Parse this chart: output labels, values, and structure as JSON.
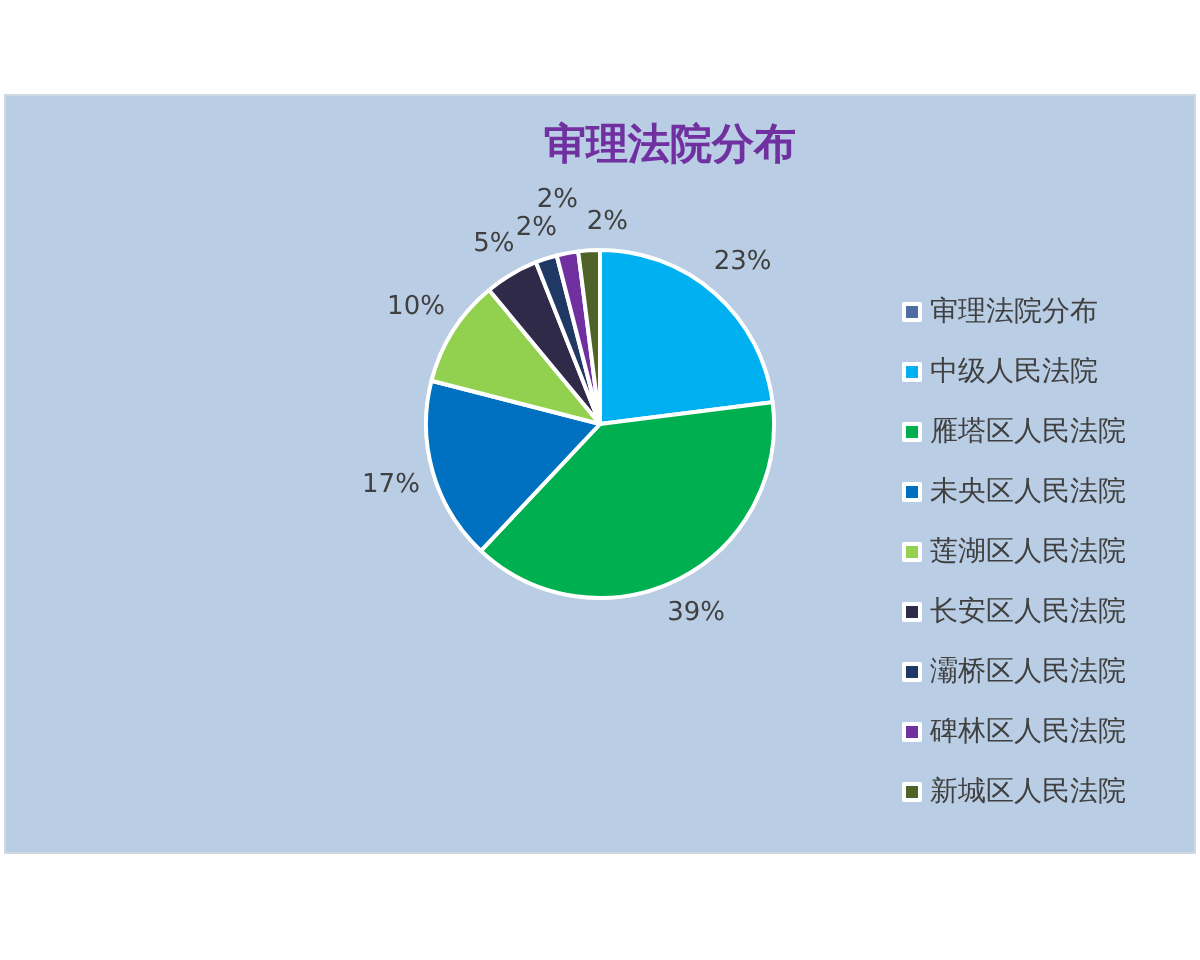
{
  "chart_data": {
    "type": "pie",
    "title": "审理法院分布",
    "categories": [
      "审理法院分布",
      "中级人民法院",
      "雁塔区人民法院",
      "未央区人民法院",
      "莲湖区人民法院",
      "长安区人民法院",
      "灞桥区人民法院",
      "碑林区人民法院",
      "新城区人民法院"
    ],
    "values": [
      null,
      23,
      39,
      17,
      10,
      5,
      2,
      2,
      2
    ],
    "colors": [
      "#4f6fa0",
      "#00b0f0",
      "#00b050",
      "#0070c0",
      "#92d050",
      "#2e2a48",
      "#1f3864",
      "#7030a0",
      "#4f6228"
    ],
    "value_labels": [
      null,
      "23%",
      "39%",
      "17%",
      "10%",
      "5%",
      "2%",
      "2%",
      "2%"
    ],
    "legend": "right"
  }
}
